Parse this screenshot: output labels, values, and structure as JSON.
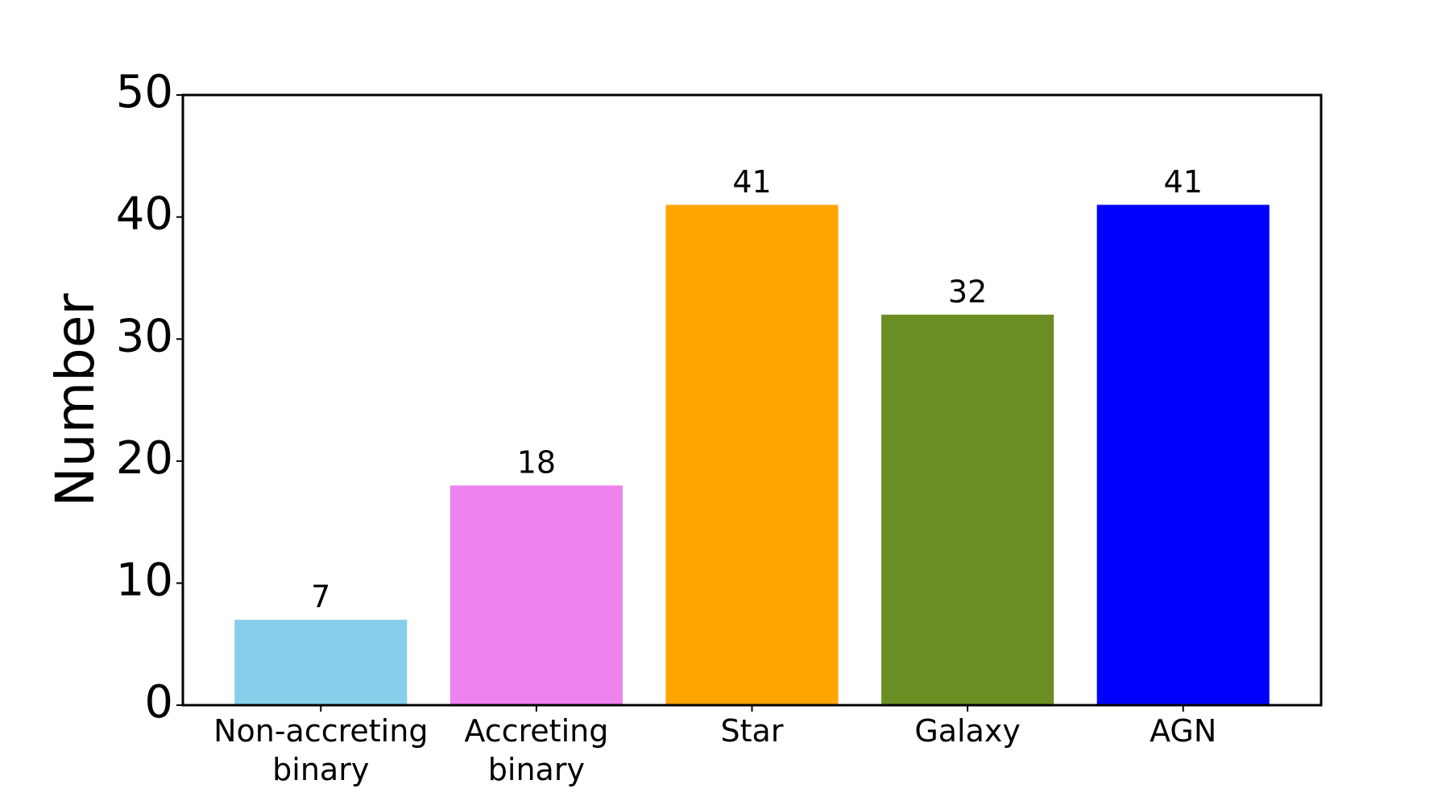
{
  "chart_data": {
    "type": "bar",
    "ylabel": "Number",
    "categories": [
      "Non-accreting\nbinary",
      "Accreting\nbinary",
      "Star",
      "Galaxy",
      "AGN"
    ],
    "values": [
      7,
      18,
      41,
      32,
      41
    ],
    "colors": [
      "#87ceeb",
      "#ee82ee",
      "#ffa500",
      "#6b8e23",
      "#0000ff"
    ],
    "ylim": [
      0,
      50
    ],
    "yticks": [
      0,
      10,
      20,
      30,
      40,
      50
    ]
  }
}
